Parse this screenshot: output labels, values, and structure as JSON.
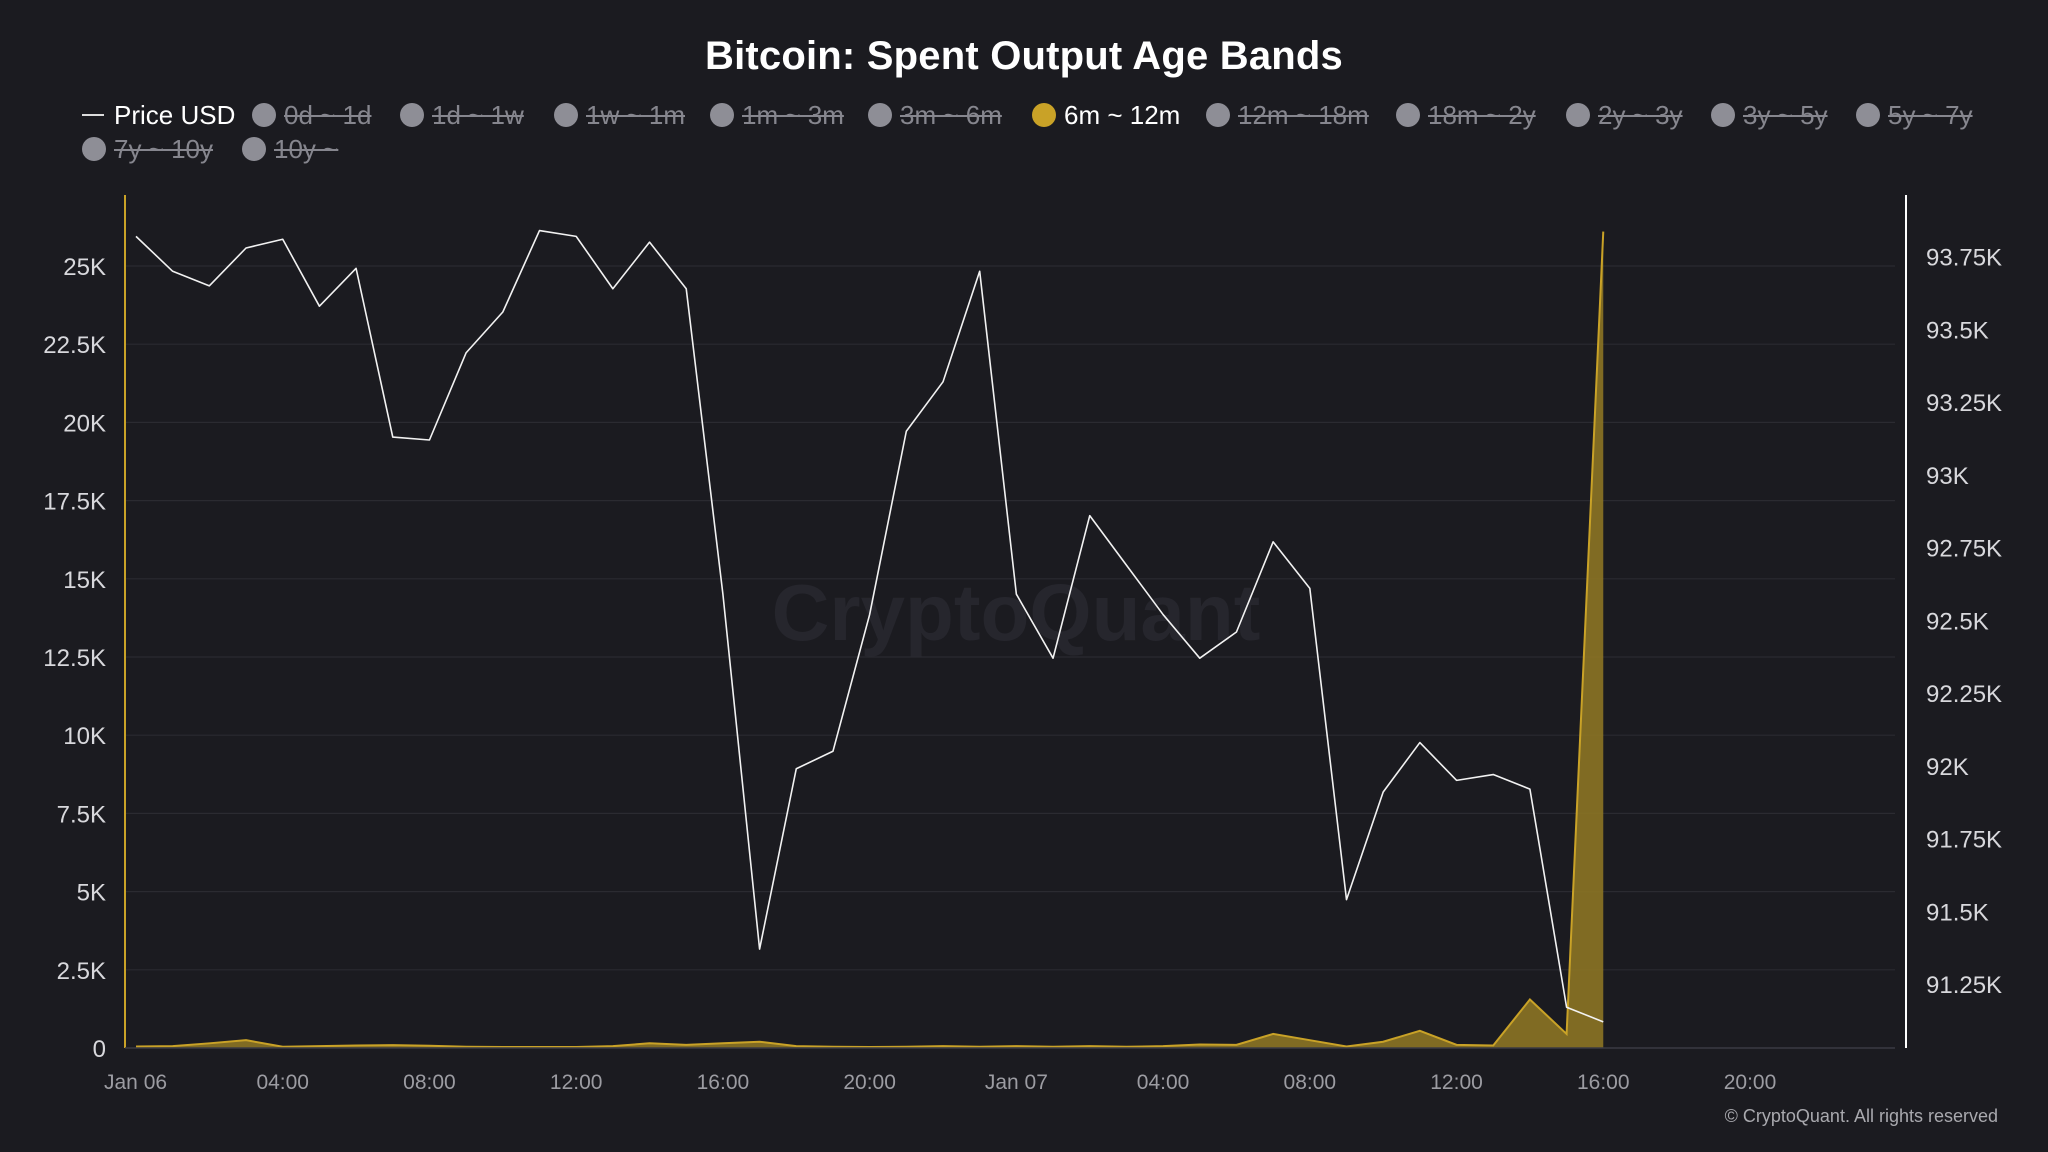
{
  "title": "Bitcoin: Spent Output Age Bands",
  "watermark": "CryptoQuant",
  "copyright": "© CryptoQuant. All rights reserved",
  "colors": {
    "background": "#1b1b20",
    "price_line": "#f2f2f2",
    "band_6m_12m": "#c9a227",
    "band_fill": "#8c7424",
    "inactive_dot": "#8e8e96",
    "inactive_text": "#86868e",
    "grid": "#2b2b31",
    "axis_text": "#d8d8dc",
    "x_axis_text": "#9c9ca2"
  },
  "legend": [
    {
      "label": "Price USD",
      "marker": "line",
      "active": true
    },
    {
      "label": "0d ~ 1d",
      "marker": "dot",
      "active": false
    },
    {
      "label": "1d ~ 1w",
      "marker": "dot",
      "active": false
    },
    {
      "label": "1w ~ 1m",
      "marker": "dot",
      "active": false
    },
    {
      "label": "1m ~ 3m",
      "marker": "dot",
      "active": false
    },
    {
      "label": "3m ~ 6m",
      "marker": "dot",
      "active": false
    },
    {
      "label": "6m ~ 12m",
      "marker": "dot",
      "active": true
    },
    {
      "label": "12m ~ 18m",
      "marker": "dot",
      "active": false
    },
    {
      "label": "18m ~ 2y",
      "marker": "dot",
      "active": false
    },
    {
      "label": "2y ~ 3y",
      "marker": "dot",
      "active": false
    },
    {
      "label": "3y ~ 5y",
      "marker": "dot",
      "active": false
    },
    {
      "label": "5y ~ 7y",
      "marker": "dot",
      "active": false
    },
    {
      "label": "7y ~ 10y",
      "marker": "dot",
      "active": false
    },
    {
      "label": "10y ~",
      "marker": "dot",
      "active": false
    }
  ],
  "chart_data": {
    "type": "area",
    "title": "Bitcoin: Spent Output Age Bands",
    "grid": true,
    "legend_position": "top",
    "x_ticks": [
      "Jan 06",
      "04:00",
      "08:00",
      "12:00",
      "16:00",
      "20:00",
      "Jan 07",
      "04:00",
      "08:00",
      "12:00",
      "16:00",
      "20:00"
    ],
    "x_range_hours": [
      0,
      48
    ],
    "y_left": {
      "ticks": [
        "0",
        "2.5K",
        "5K",
        "7.5K",
        "10K",
        "12.5K",
        "15K",
        "17.5K",
        "20K",
        "22.5K",
        "25K"
      ],
      "tick_values": [
        0,
        2500,
        5000,
        7500,
        10000,
        12500,
        15000,
        17500,
        20000,
        22500,
        25000
      ],
      "ylim": [
        0,
        26600
      ]
    },
    "y_right": {
      "ticks": [
        "91.25K",
        "91.5K",
        "91.75K",
        "92K",
        "92.25K",
        "92.5K",
        "92.75K",
        "93K",
        "93.25K",
        "93.5K",
        "93.75K"
      ],
      "tick_values": [
        91250,
        91500,
        91750,
        92000,
        92250,
        92500,
        92750,
        93000,
        93250,
        93500,
        93750
      ],
      "ylim": [
        91030,
        93910
      ]
    },
    "x": [
      "Jan 06 00:00",
      "Jan 06 01:00",
      "Jan 06 02:00",
      "Jan 06 03:00",
      "Jan 06 04:00",
      "Jan 06 05:00",
      "Jan 06 06:00",
      "Jan 06 07:00",
      "Jan 06 08:00",
      "Jan 06 09:00",
      "Jan 06 10:00",
      "Jan 06 11:00",
      "Jan 06 12:00",
      "Jan 06 13:00",
      "Jan 06 14:00",
      "Jan 06 15:00",
      "Jan 06 16:00",
      "Jan 06 17:00",
      "Jan 06 18:00",
      "Jan 06 19:00",
      "Jan 06 20:00",
      "Jan 06 21:00",
      "Jan 06 22:00",
      "Jan 06 23:00",
      "Jan 07 00:00",
      "Jan 07 01:00",
      "Jan 07 02:00",
      "Jan 07 03:00",
      "Jan 07 04:00",
      "Jan 07 05:00",
      "Jan 07 06:00",
      "Jan 07 07:00",
      "Jan 07 08:00",
      "Jan 07 09:00",
      "Jan 07 10:00",
      "Jan 07 11:00",
      "Jan 07 12:00",
      "Jan 07 13:00",
      "Jan 07 14:00",
      "Jan 07 15:00",
      "Jan 07 16:00"
    ],
    "series": [
      {
        "name": "Price USD",
        "axis": "right",
        "style": "line",
        "values": [
          93820,
          93700,
          93650,
          93780,
          93810,
          93580,
          93710,
          93130,
          93120,
          93420,
          93560,
          93840,
          93820,
          93640,
          93800,
          93640,
          92590,
          91370,
          91990,
          92050,
          92520,
          93150,
          93320,
          93700,
          92590,
          92370,
          92860,
          92690,
          92520,
          92370,
          92460,
          92770,
          92610,
          91540,
          91910,
          92080,
          91950,
          91970,
          91920,
          91170,
          91120
        ]
      },
      {
        "name": "6m ~ 12m",
        "axis": "left",
        "style": "area",
        "values": [
          50,
          60,
          150,
          250,
          40,
          60,
          80,
          90,
          70,
          40,
          30,
          30,
          30,
          60,
          150,
          100,
          150,
          200,
          60,
          40,
          30,
          40,
          60,
          40,
          60,
          40,
          60,
          40,
          60,
          110,
          100,
          450,
          250,
          50,
          200,
          550,
          100,
          80,
          1550,
          450,
          26100
        ]
      }
    ]
  }
}
